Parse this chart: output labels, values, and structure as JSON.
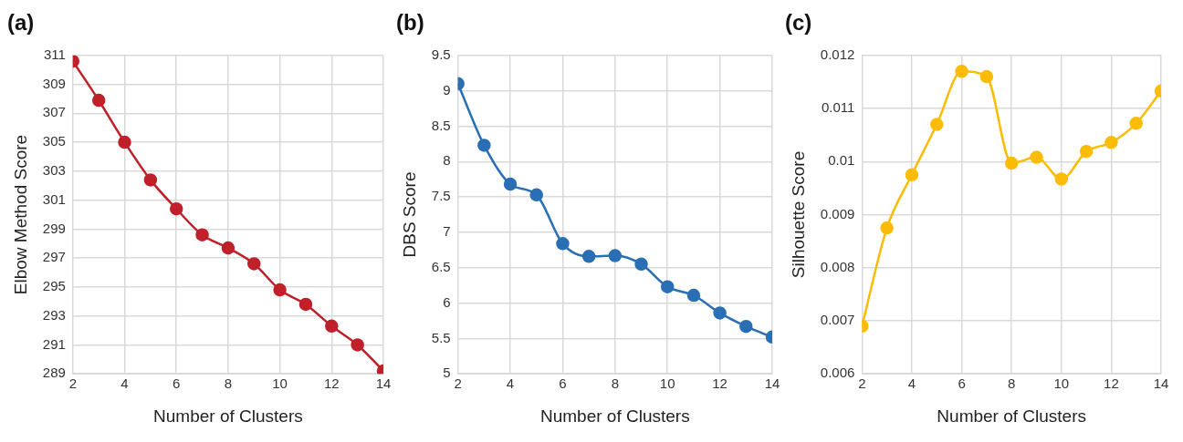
{
  "chart_data": [
    {
      "type": "line",
      "title": "(a)",
      "xlabel": "Number of Clusters",
      "ylabel": "Elbow Method Score",
      "x": [
        2,
        3,
        4,
        5,
        6,
        7,
        8,
        9,
        10,
        11,
        12,
        13,
        14
      ],
      "series": [
        {
          "color": "#c0202a",
          "values": [
            310.6,
            307.9,
            305.0,
            302.4,
            300.4,
            298.6,
            297.7,
            296.6,
            294.8,
            293.8,
            292.3,
            291.0,
            289.2
          ]
        }
      ],
      "xlim": [
        2,
        14
      ],
      "xticks": [
        2,
        4,
        6,
        8,
        10,
        12,
        14
      ],
      "ylim": [
        289,
        311
      ],
      "yticks": [
        289,
        291,
        293,
        295,
        297,
        299,
        301,
        303,
        305,
        307,
        309,
        311
      ],
      "grid": true,
      "marker": "circle",
      "line_style": "solid",
      "legend": false
    },
    {
      "type": "line",
      "title": "(b)",
      "xlabel": "Number of Clusters",
      "ylabel": "DBS Score",
      "x": [
        2,
        3,
        4,
        5,
        6,
        7,
        8,
        9,
        10,
        11,
        12,
        13,
        14
      ],
      "series": [
        {
          "color": "#2a6eb4",
          "values": [
            9.1,
            8.23,
            7.68,
            7.53,
            6.84,
            6.66,
            6.67,
            6.55,
            6.23,
            6.11,
            5.86,
            5.67,
            5.52
          ]
        }
      ],
      "xlim": [
        2,
        14
      ],
      "xticks": [
        2,
        4,
        6,
        8,
        10,
        12,
        14
      ],
      "ylim": [
        5,
        9.5
      ],
      "yticks": [
        5,
        5.5,
        6,
        6.5,
        7,
        7.5,
        8,
        8.5,
        9,
        9.5
      ],
      "grid": true,
      "marker": "circle",
      "line_style": "solid",
      "legend": false
    },
    {
      "type": "line",
      "title": "(c)",
      "xlabel": "Number of Clusters",
      "ylabel": "Silhouette Score",
      "x": [
        2,
        3,
        4,
        5,
        6,
        7,
        8,
        9,
        10,
        11,
        12,
        13,
        14
      ],
      "series": [
        {
          "color": "#fbbc05",
          "values": [
            0.0069,
            0.00875,
            0.00975,
            0.0107,
            0.0117,
            0.0116,
            0.00997,
            0.01008,
            0.00967,
            0.01019,
            0.01036,
            0.01072,
            0.01133
          ]
        }
      ],
      "xlim": [
        2,
        14
      ],
      "xticks": [
        2,
        4,
        6,
        8,
        10,
        12,
        14
      ],
      "ylim": [
        0.006,
        0.012
      ],
      "yticks": [
        0.006,
        0.007,
        0.008,
        0.009,
        0.01,
        0.011,
        0.012
      ],
      "grid": true,
      "marker": "circle",
      "line_style": "solid",
      "legend": false
    }
  ]
}
